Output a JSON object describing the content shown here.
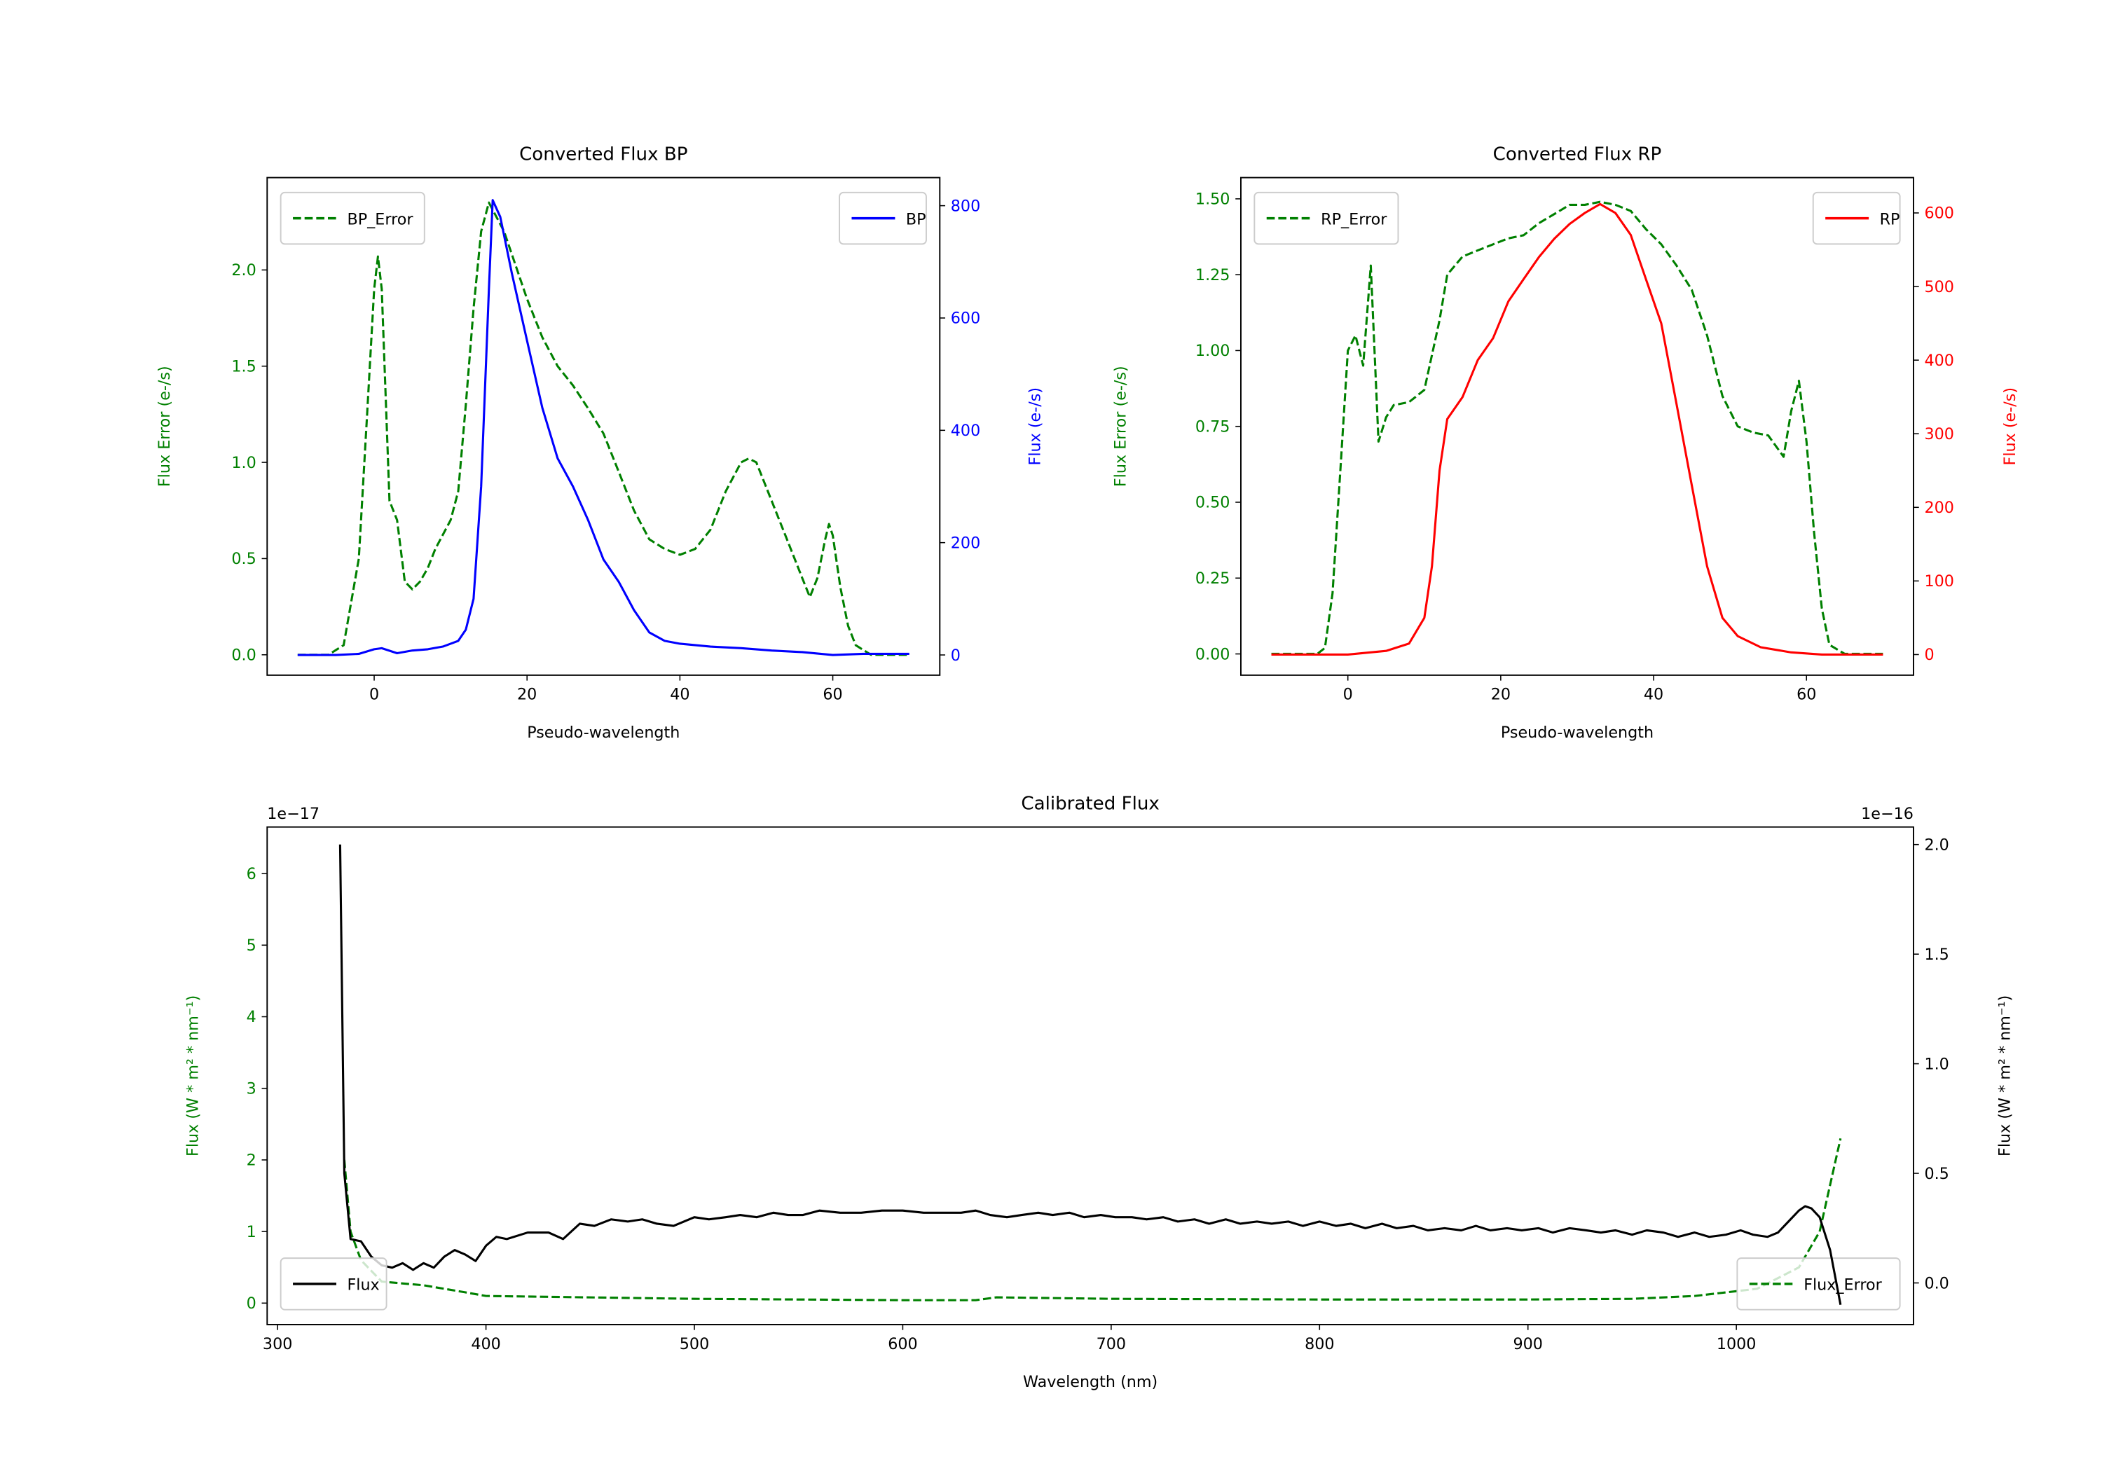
{
  "chart_data": [
    {
      "type": "line",
      "title": "Converted Flux BP",
      "xlabel": "Pseudo-wavelength",
      "xlim": [
        -14,
        74
      ],
      "xticks": [
        0,
        20,
        40,
        60
      ],
      "left_axis": {
        "label": "Flux Error (e-/s)",
        "color": "#008000",
        "ylim": [
          -0.106,
          2.48
        ],
        "ticks": [
          "0.0",
          "0.5",
          "1.0",
          "1.5",
          "2.0"
        ],
        "tick_values": [
          0,
          0.5,
          1.0,
          1.5,
          2.0
        ],
        "offset_text": ""
      },
      "right_axis": {
        "label": "Flux (e-/s)",
        "color": "#0000ff",
        "ylim": [
          -36,
          850
        ],
        "ticks": [
          "0",
          "200",
          "400",
          "600",
          "800"
        ],
        "tick_values": [
          0,
          200,
          400,
          600,
          800
        ],
        "offset_text": ""
      },
      "series": [
        {
          "name": "BP_Error",
          "axis": "left",
          "color": "#008000",
          "style": "dashed",
          "legend": "upper left",
          "x": [
            -10,
            -6,
            -4,
            -2,
            -1,
            0,
            0.5,
            1,
            2,
            3,
            4,
            5,
            6,
            7,
            8,
            10,
            11,
            12,
            13,
            14,
            15,
            17,
            20,
            22,
            24,
            26,
            28,
            30,
            32,
            34,
            36,
            38,
            40,
            42,
            44,
            46,
            48,
            49,
            50,
            52,
            54,
            56,
            57,
            58,
            59,
            59.5,
            60,
            61,
            62,
            63,
            65,
            70
          ],
          "y": [
            0,
            0,
            0.05,
            0.5,
            1.2,
            1.9,
            2.07,
            1.9,
            0.8,
            0.7,
            0.38,
            0.34,
            0.38,
            0.45,
            0.55,
            0.7,
            0.85,
            1.3,
            1.8,
            2.2,
            2.35,
            2.2,
            1.85,
            1.65,
            1.5,
            1.4,
            1.28,
            1.15,
            0.95,
            0.75,
            0.6,
            0.55,
            0.52,
            0.55,
            0.65,
            0.85,
            1.0,
            1.02,
            1.0,
            0.8,
            0.6,
            0.4,
            0.3,
            0.4,
            0.6,
            0.68,
            0.62,
            0.35,
            0.15,
            0.05,
            0,
            0
          ]
        },
        {
          "name": "BP",
          "axis": "right",
          "color": "#0000ff",
          "style": "solid",
          "legend": "upper right",
          "x": [
            -10,
            -5,
            -2,
            0,
            1,
            3,
            5,
            7,
            9,
            11,
            12,
            13,
            14,
            15,
            15.5,
            16.5,
            18,
            20,
            22,
            24,
            26,
            28,
            30,
            32,
            34,
            36,
            38,
            40,
            44,
            48,
            52,
            56,
            60,
            64,
            70
          ],
          "y": [
            0,
            0,
            2,
            10,
            12,
            3,
            8,
            10,
            15,
            25,
            45,
            100,
            300,
            650,
            810,
            780,
            680,
            560,
            440,
            350,
            300,
            240,
            170,
            130,
            80,
            40,
            25,
            20,
            15,
            12,
            8,
            5,
            0,
            2,
            2
          ]
        }
      ]
    },
    {
      "type": "line",
      "title": "Converted Flux RP",
      "xlabel": "Pseudo-wavelength",
      "xlim": [
        -14,
        74
      ],
      "xticks": [
        0,
        20,
        40,
        60
      ],
      "left_axis": {
        "label": "Flux Error (e-/s)",
        "color": "#008000",
        "ylim": [
          -0.07,
          1.57
        ],
        "ticks": [
          "0.00",
          "0.25",
          "0.50",
          "0.75",
          "1.00",
          "1.25",
          "1.50"
        ],
        "tick_values": [
          0,
          0.25,
          0.5,
          0.75,
          1.0,
          1.25,
          1.5
        ],
        "offset_text": ""
      },
      "right_axis": {
        "label": "Flux (e-/s)",
        "color": "#ff0000",
        "ylim": [
          -28,
          648
        ],
        "ticks": [
          "0",
          "100",
          "200",
          "300",
          "400",
          "500",
          "600"
        ],
        "tick_values": [
          0,
          100,
          200,
          300,
          400,
          500,
          600
        ],
        "offset_text": ""
      },
      "series": [
        {
          "name": "RP_Error",
          "axis": "left",
          "color": "#008000",
          "style": "dashed",
          "legend": "upper left",
          "x": [
            -10,
            -4,
            -3,
            -2,
            -1,
            0,
            1,
            2,
            3,
            4,
            5,
            6,
            8,
            10,
            12,
            13,
            15,
            17,
            19,
            21,
            23,
            25,
            27,
            29,
            31,
            33,
            35,
            37,
            39,
            41,
            43,
            45,
            47,
            49,
            51,
            53,
            55,
            57,
            58,
            59,
            60,
            61,
            62,
            63,
            65,
            70
          ],
          "y": [
            0,
            0,
            0.02,
            0.2,
            0.6,
            1.0,
            1.05,
            0.95,
            1.28,
            0.7,
            0.78,
            0.82,
            0.83,
            0.87,
            1.1,
            1.25,
            1.31,
            1.33,
            1.35,
            1.37,
            1.38,
            1.42,
            1.45,
            1.48,
            1.48,
            1.49,
            1.48,
            1.46,
            1.4,
            1.35,
            1.28,
            1.2,
            1.05,
            0.85,
            0.75,
            0.73,
            0.72,
            0.65,
            0.8,
            0.9,
            0.7,
            0.4,
            0.15,
            0.03,
            0,
            0
          ]
        },
        {
          "name": "RP",
          "axis": "right",
          "color": "#ff0000",
          "style": "solid",
          "legend": "upper right",
          "x": [
            -10,
            0,
            5,
            8,
            10,
            11,
            12,
            13,
            15,
            17,
            19,
            21,
            23,
            25,
            27,
            29,
            31,
            33,
            35,
            37,
            39,
            41,
            43,
            45,
            47,
            49,
            51,
            54,
            58,
            62,
            70
          ],
          "y": [
            0,
            0,
            5,
            15,
            50,
            120,
            250,
            320,
            350,
            400,
            430,
            480,
            510,
            540,
            565,
            585,
            600,
            612,
            600,
            570,
            510,
            450,
            340,
            230,
            120,
            50,
            25,
            10,
            3,
            0,
            0
          ]
        }
      ]
    },
    {
      "type": "line",
      "title": "Calibrated Flux",
      "xlabel": "Wavelength (nm)",
      "xlim": [
        295,
        1085
      ],
      "xticks": [
        300,
        400,
        500,
        600,
        700,
        800,
        900,
        1000
      ],
      "left_axis": {
        "label": "Flux (W * m² * nm⁻¹)",
        "color": "#008000",
        "ylim": [
          -0.3,
          6.65
        ],
        "ticks": [
          "0",
          "1",
          "2",
          "3",
          "4",
          "5",
          "6"
        ],
        "tick_values": [
          0,
          1,
          2,
          3,
          4,
          5,
          6
        ],
        "offset_text": "1e−17"
      },
      "right_axis": {
        "label": "Flux (W * m² * nm⁻¹)",
        "color": "#000000",
        "ylim": [
          -0.19,
          2.08
        ],
        "ticks": [
          "0.0",
          "0.5",
          "1.0",
          "1.5",
          "2.0"
        ],
        "tick_values": [
          0,
          0.5,
          1.0,
          1.5,
          2.0
        ],
        "offset_text": "1e−16"
      },
      "series": [
        {
          "name": "Flux_Error",
          "axis": "left",
          "color": "#008000",
          "style": "dashed",
          "legend": "lower right",
          "x": [
            332,
            335,
            340,
            350,
            370,
            390,
            400,
            500,
            600,
            635,
            645,
            700,
            800,
            900,
            950,
            980,
            1010,
            1030,
            1040,
            1050
          ],
          "y": [
            2.0,
            1.0,
            0.6,
            0.3,
            0.25,
            0.15,
            0.1,
            0.06,
            0.04,
            0.04,
            0.08,
            0.06,
            0.05,
            0.05,
            0.06,
            0.1,
            0.2,
            0.5,
            1.0,
            2.3
          ]
        },
        {
          "name": "Flux",
          "axis": "right",
          "color": "#000000",
          "style": "solid",
          "legend": "lower left",
          "x": [
            330,
            332,
            335,
            340,
            345,
            350,
            355,
            360,
            365,
            370,
            375,
            380,
            385,
            390,
            395,
            400,
            405,
            410,
            420,
            430,
            437,
            445,
            452,
            460,
            468,
            475,
            482,
            490,
            500,
            507,
            515,
            522,
            530,
            538,
            545,
            552,
            560,
            570,
            580,
            590,
            600,
            610,
            620,
            628,
            635,
            642,
            650,
            657,
            665,
            672,
            680,
            687,
            695,
            702,
            710,
            717,
            725,
            732,
            740,
            747,
            755,
            762,
            770,
            777,
            785,
            792,
            800,
            808,
            815,
            822,
            830,
            837,
            845,
            852,
            860,
            868,
            875,
            882,
            890,
            897,
            905,
            912,
            920,
            928,
            935,
            942,
            950,
            957,
            965,
            972,
            980,
            987,
            995,
            1002,
            1008,
            1015,
            1020,
            1025,
            1030,
            1033,
            1036,
            1040,
            1045,
            1050
          ],
          "y": [
            2.0,
            0.5,
            0.2,
            0.19,
            0.12,
            0.08,
            0.07,
            0.09,
            0.06,
            0.09,
            0.07,
            0.12,
            0.15,
            0.13,
            0.1,
            0.17,
            0.21,
            0.2,
            0.23,
            0.23,
            0.2,
            0.27,
            0.26,
            0.29,
            0.28,
            0.29,
            0.27,
            0.26,
            0.3,
            0.29,
            0.3,
            0.31,
            0.3,
            0.32,
            0.31,
            0.31,
            0.33,
            0.32,
            0.32,
            0.33,
            0.33,
            0.32,
            0.32,
            0.32,
            0.33,
            0.31,
            0.3,
            0.31,
            0.32,
            0.31,
            0.32,
            0.3,
            0.31,
            0.3,
            0.3,
            0.29,
            0.3,
            0.28,
            0.29,
            0.27,
            0.29,
            0.27,
            0.28,
            0.27,
            0.28,
            0.26,
            0.28,
            0.26,
            0.27,
            0.25,
            0.27,
            0.25,
            0.26,
            0.24,
            0.25,
            0.24,
            0.26,
            0.24,
            0.25,
            0.24,
            0.25,
            0.23,
            0.25,
            0.24,
            0.23,
            0.24,
            0.22,
            0.24,
            0.23,
            0.21,
            0.23,
            0.21,
            0.22,
            0.24,
            0.22,
            0.21,
            0.23,
            0.28,
            0.33,
            0.35,
            0.34,
            0.3,
            0.15,
            -0.1
          ]
        }
      ]
    }
  ]
}
